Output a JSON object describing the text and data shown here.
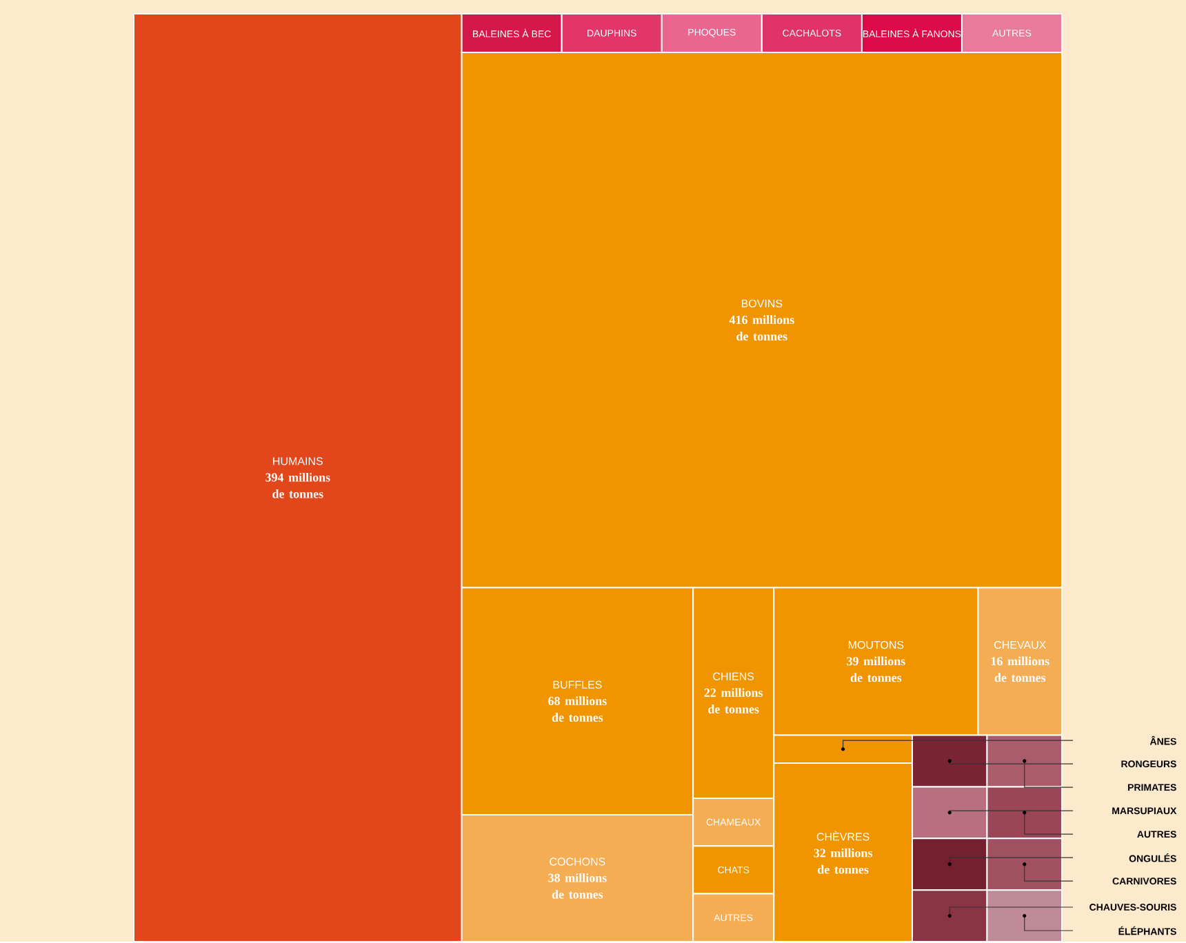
{
  "chart_data": {
    "type": "other",
    "categories": [
      "HUMAINS",
      "BALEINES À BEC",
      "DAUPHINS",
      "PHOQUES",
      "CACHALOTS",
      "BALEINES À FANONS",
      "AUTRES",
      "BOVINS",
      "BUFFLES",
      "COCHONS",
      "CHIENS",
      "CHAMEAUX",
      "CHATS",
      "AUTRES",
      "MOUTONS",
      "CHEVAUX",
      "ÂNES",
      "CHÈVRES",
      "RONGEURS",
      "PRIMATES",
      "MARSUPIAUX",
      "AUTRES",
      "ONGULÉS",
      "CHAUVES-SOURIS",
      "CARNIVORES",
      "ÉLÉPHANTS"
    ],
    "values": [
      394,
      null,
      null,
      null,
      null,
      null,
      null,
      416,
      68,
      38,
      22,
      null,
      null,
      null,
      39,
      16,
      null,
      32,
      null,
      null,
      null,
      null,
      null,
      null,
      null,
      null
    ],
    "value_labels": [
      "394 millions de tonnes",
      null,
      null,
      null,
      null,
      null,
      null,
      "416 millions de tonnes",
      "68 millions de tonnes",
      "38 millions de tonnes",
      "22 millions de tonnes",
      null,
      null,
      null,
      "39 millions de tonnes",
      "16 millions de tonnes",
      null,
      "32 millions de tonnes",
      null,
      null,
      null,
      null,
      null,
      null,
      null,
      null
    ],
    "colors": [
      "#e2461b",
      "#d4184a",
      "#e2366a",
      "#e8668f",
      "#e0336a",
      "#dc0a48",
      "#e87a9c",
      "#f09400",
      "#f09400",
      "#f4ad52",
      "#f09400",
      "#f4ad52",
      "#f09400",
      "#f4ad52",
      "#f09400",
      "#f4ad52",
      "#f09400",
      "#f09400",
      "#7b2434",
      "#a85c6c",
      "#b87080",
      "#9a4656",
      "#74202f",
      "#8a3444",
      "#a05262",
      "#c08b98"
    ]
  }
}
